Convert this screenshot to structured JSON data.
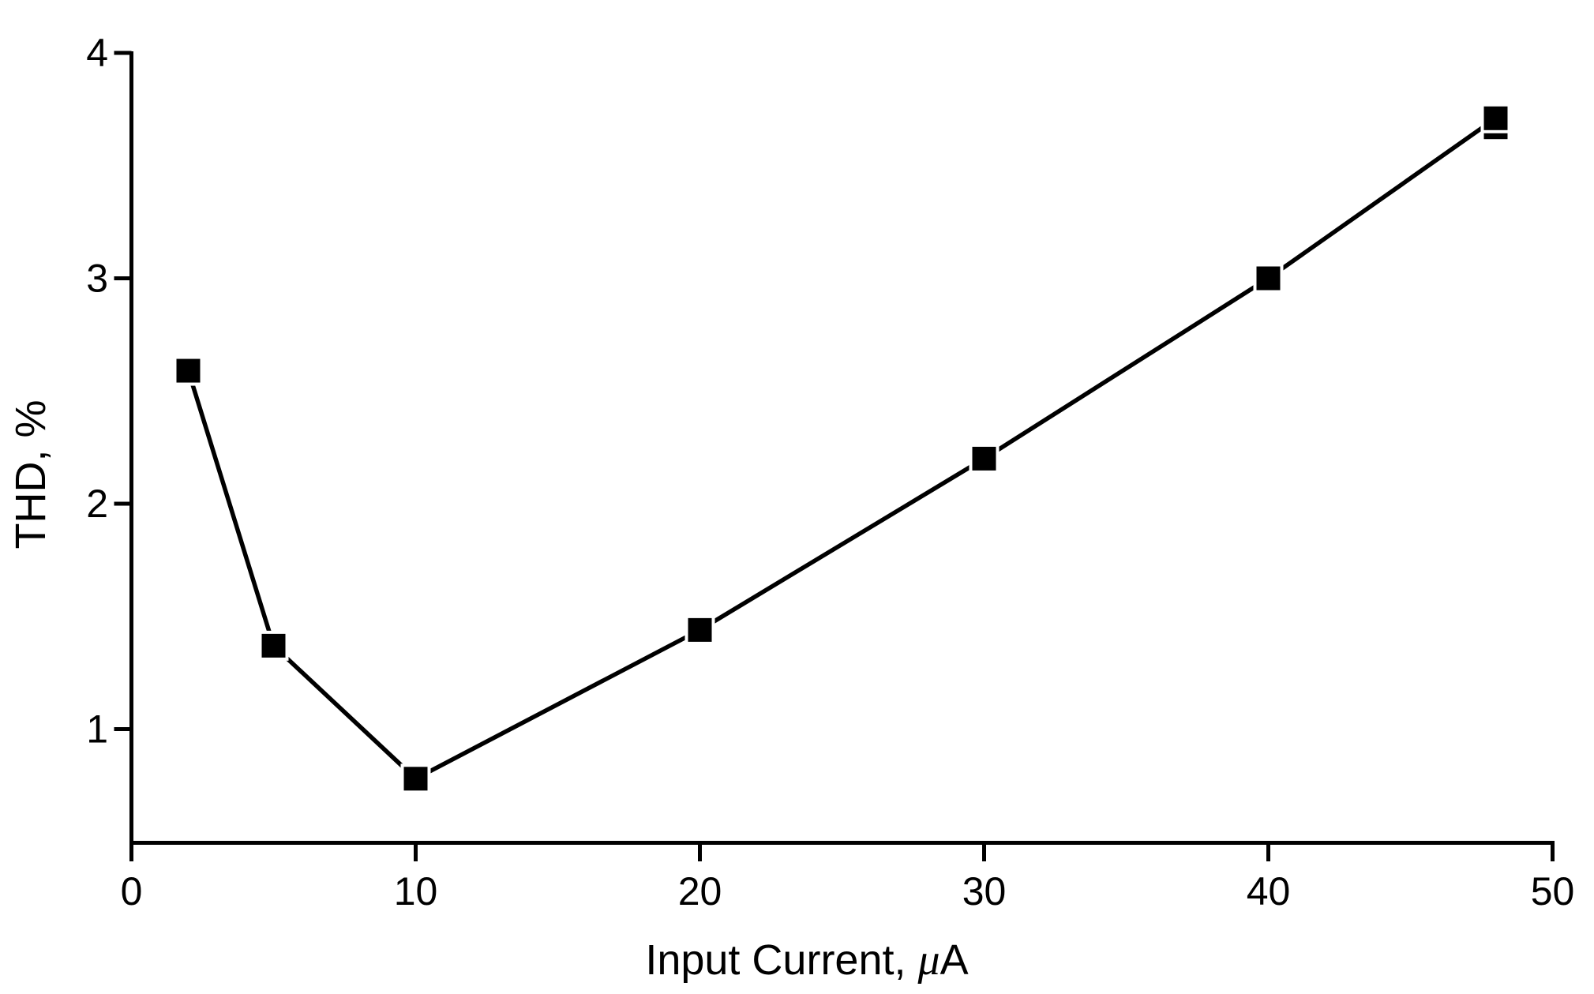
{
  "chart_data": {
    "type": "line",
    "title": "",
    "xlabel": "Input Current, μA",
    "xlabel_parts": {
      "prefix": "Input Current, ",
      "mu": "μ",
      "suffix": "A"
    },
    "ylabel": "THD, %",
    "x": [
      2,
      5,
      10,
      20,
      30,
      40,
      48
    ],
    "series": [
      {
        "name": "THD",
        "values": [
          2.59,
          1.37,
          0.78,
          1.44,
          2.2,
          3.0,
          3.71
        ]
      }
    ],
    "secondary_marker": {
      "x": 48,
      "y": 3.67
    },
    "xlim": [
      0,
      50
    ],
    "ylim": [
      0.5,
      4
    ],
    "xticks": [
      0,
      10,
      20,
      30,
      40,
      50
    ],
    "yticks": [
      1,
      2,
      3,
      4
    ],
    "grid": false,
    "legend": false,
    "marker": "filled-square",
    "marker_color": "#000000",
    "line_color": "#000000",
    "axis_color": "#000000",
    "background": "#ffffff"
  }
}
